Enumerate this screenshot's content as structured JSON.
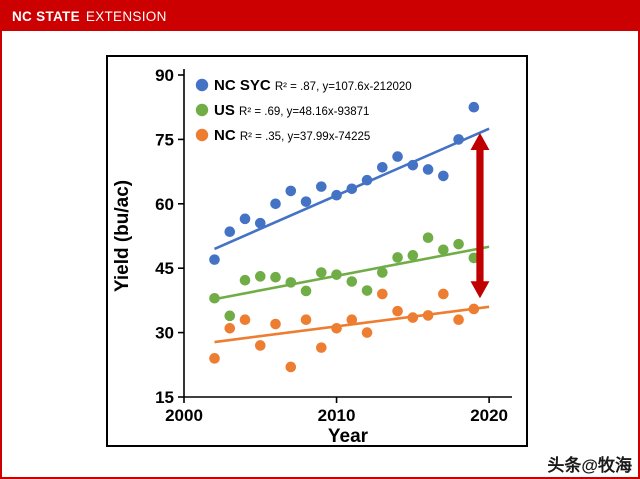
{
  "banner": {
    "brand_primary": "NC STATE",
    "brand_secondary": "EXTENSION",
    "bg_color": "#CC0000"
  },
  "watermark": "头条@牧海",
  "chart_data": {
    "type": "scatter",
    "xlabel": "Year",
    "ylabel": "Yield (bu/ac)",
    "xlim": [
      2000,
      2021.5
    ],
    "ylim": [
      15,
      90
    ],
    "xticks": [
      2000,
      2010,
      2020
    ],
    "yticks": [
      15,
      30,
      45,
      60,
      75,
      90
    ],
    "grid": false,
    "legend_position": "top-left",
    "series": [
      {
        "name": "NC SYC",
        "color": "#4472C4",
        "note": "R² = .87, y=107.6x-212020",
        "x": [
          2002,
          2003,
          2004,
          2005,
          2006,
          2007,
          2008,
          2009,
          2010,
          2011,
          2012,
          2013,
          2014,
          2015,
          2016,
          2017,
          2018,
          2019
        ],
        "y": [
          47,
          53.5,
          56.5,
          55.5,
          60,
          63,
          60.5,
          64,
          62,
          63.5,
          65.5,
          68.5,
          71,
          69,
          68,
          66.5,
          75,
          82.5
        ],
        "trend": {
          "x1": 2002,
          "y1": 49.5,
          "x2": 2020,
          "y2": 77.5
        }
      },
      {
        "name": "US",
        "color": "#70AD47",
        "note": "R² = .69, y=48.16x-93871",
        "x": [
          2002,
          2003,
          2004,
          2005,
          2006,
          2007,
          2008,
          2009,
          2010,
          2011,
          2012,
          2013,
          2014,
          2015,
          2016,
          2017,
          2018,
          2019
        ],
        "y": [
          38,
          33.9,
          42.2,
          43.1,
          42.9,
          41.7,
          39.7,
          44,
          43.5,
          41.9,
          39.8,
          44,
          47.5,
          48,
          52.1,
          49.3,
          50.6,
          47.4
        ],
        "trend": {
          "x1": 2002,
          "y1": 37.8,
          "x2": 2020,
          "y2": 50
        }
      },
      {
        "name": "NC",
        "color": "#ED7D31",
        "note": "R² = .35, y=37.99x-74225",
        "x": [
          2002,
          2003,
          2004,
          2005,
          2006,
          2007,
          2008,
          2009,
          2010,
          2011,
          2012,
          2013,
          2014,
          2015,
          2016,
          2017,
          2018,
          2019
        ],
        "y": [
          24,
          31,
          33,
          27,
          32,
          22,
          33,
          26.5,
          31,
          33,
          30,
          39,
          35,
          33.5,
          34,
          39,
          33,
          35.5
        ],
        "trend": {
          "x1": 2002,
          "y1": 27.8,
          "x2": 2020,
          "y2": 36
        }
      }
    ],
    "arrow": {
      "x": 2019.4,
      "y_top": 76.5,
      "y_bottom": 38,
      "color": "#C00000"
    }
  }
}
